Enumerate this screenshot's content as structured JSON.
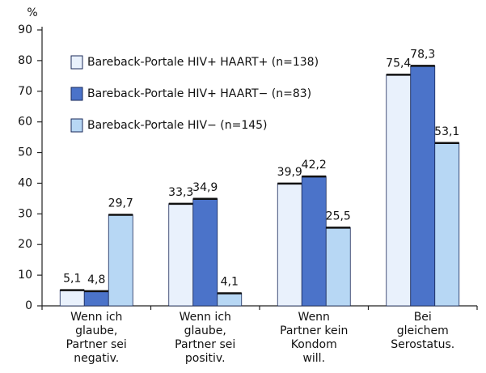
{
  "chart_data": {
    "type": "bar",
    "ylabel": "%",
    "categories": [
      [
        "Wenn ich",
        "glaube,",
        "Partner sei",
        "negativ."
      ],
      [
        "Wenn ich",
        "glaube,",
        "Partner sei",
        "positiv."
      ],
      [
        "Wenn",
        "Partner kein",
        "Kondom",
        "will."
      ],
      [
        "Bei",
        "gleichem",
        "Serostatus."
      ]
    ],
    "series": [
      {
        "name": "Bareback-Portale HIV+ HAART+ (n=138)",
        "color": "#e9f1fc",
        "values": [
          5.1,
          33.3,
          39.9,
          75.4
        ],
        "value_labels": [
          "5,1",
          "33,3",
          "39,9",
          "75,4"
        ]
      },
      {
        "name": "Bareback-Portale HIV+ HAART− (n=83)",
        "color": "#4b73c9",
        "values": [
          4.8,
          34.9,
          42.2,
          78.3
        ],
        "value_labels": [
          "4,8",
          "34,9",
          "42,2",
          "78,3"
        ]
      },
      {
        "name": "Bareback-Portale HIV− (n=145)",
        "color": "#b7d7f4",
        "values": [
          29.7,
          4.1,
          25.5,
          53.1
        ],
        "value_labels": [
          "29,7",
          "4,1",
          "25,5",
          "53,1"
        ]
      }
    ],
    "ylim": [
      0,
      90
    ],
    "yticks": [
      0,
      10,
      20,
      30,
      40,
      50,
      60,
      70,
      80,
      90
    ]
  }
}
